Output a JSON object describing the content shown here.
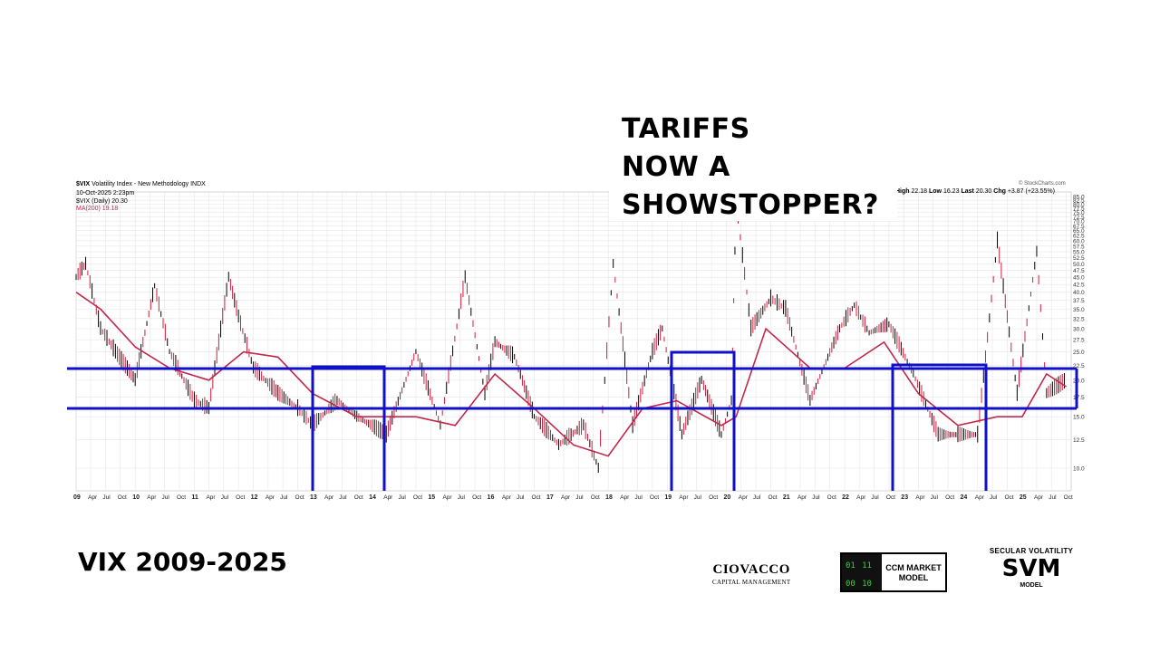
{
  "headline": [
    "TARIFFS",
    "NOW A",
    "SHOWSTOPPER?"
  ],
  "header": {
    "symbol": "$VIX",
    "name": "Volatility Index - New Methodology INDX",
    "date": "10-Oct-2025 2:23pm",
    "legend_vix": "$VIX (Daily) 20.30",
    "legend_ma": "MA(200) 19.18",
    "source": "© StockCharts.com",
    "stats": {
      "high_label": "High",
      "high": "22.18",
      "low_label": "Low",
      "low": "16.23",
      "last_label": "Last",
      "last": "20.30",
      "chg_label": "Chg",
      "chg": "+3.87 (+23.55%)"
    }
  },
  "bottom": {
    "title": "VIX 2009-2025",
    "ciovacco_name": "CIOVACCO",
    "ciovacco_sub": "CAPITAL MANAGEMENT",
    "ccm_label_1": "CCM MARKET",
    "ccm_label_2": "MODEL",
    "ccm_bits": [
      "01",
      "11",
      "00",
      "10"
    ],
    "svm_top": "SECULAR VOLATILITY",
    "svm_big": "SVM",
    "svm_bottom": "MODEL"
  },
  "colors": {
    "price": "#000000",
    "price_color": "#cc1f3c",
    "ma": "#c2284b",
    "overlay": "#1010c8",
    "grid": "#e6e6e6"
  },
  "chart_data": {
    "type": "line",
    "x_range": [
      "2009-01-01",
      "2025-10-31"
    ],
    "y_range": [
      7.5,
      90
    ],
    "y_scale": "log",
    "y_ticks": [
      "10.0",
      "12.5",
      "15.0",
      "17.5",
      "20.0",
      "22.5",
      "25.0",
      "27.5",
      "30.0",
      "32.5",
      "35.0",
      "37.5",
      "40.0",
      "42.5",
      "45.0",
      "47.5",
      "50.0",
      "52.5",
      "55.0",
      "57.5",
      "60.0",
      "62.5",
      "65.0",
      "67.5",
      "70.0",
      "72.5",
      "75.0",
      "77.5",
      "80.0",
      "82.5",
      "85.0"
    ],
    "x_ticks": [
      "09",
      "Apr",
      "Jul",
      "Oct",
      "10",
      "Apr",
      "Jul",
      "Oct",
      "11",
      "Apr",
      "Jul",
      "Oct",
      "12",
      "Apr",
      "Jul",
      "Oct",
      "13",
      "Apr",
      "Jul",
      "Oct",
      "14",
      "Apr",
      "Jul",
      "Oct",
      "15",
      "Apr",
      "Jul",
      "Oct",
      "16",
      "Apr",
      "Jul",
      "Oct",
      "17",
      "Apr",
      "Jul",
      "Oct",
      "18",
      "Apr",
      "Jul",
      "Oct",
      "19",
      "Apr",
      "Jul",
      "Oct",
      "20",
      "Apr",
      "Jul",
      "Oct",
      "21",
      "Apr",
      "Jul",
      "Oct",
      "22",
      "Apr",
      "Jul",
      "Oct",
      "23",
      "Apr",
      "Jul",
      "Oct",
      "24",
      "Apr",
      "Jul",
      "Oct",
      "25",
      "Apr",
      "Jul",
      "Oct"
    ],
    "series": [
      {
        "name": "$VIX (Daily)",
        "x": [
          "2009-01",
          "2009-03",
          "2009-06",
          "2009-09",
          "2010-01",
          "2010-05",
          "2010-08",
          "2011-01",
          "2011-04",
          "2011-08",
          "2011-10",
          "2012-01",
          "2012-06",
          "2012-10",
          "2013-01",
          "2013-06",
          "2013-10",
          "2014-04",
          "2014-10",
          "2015-03",
          "2015-08",
          "2015-12",
          "2016-02",
          "2016-06",
          "2016-10",
          "2017-03",
          "2017-08",
          "2017-11",
          "2018-02",
          "2018-06",
          "2018-10",
          "2018-12",
          "2019-04",
          "2019-08",
          "2019-12",
          "2020-02",
          "2020-03",
          "2020-06",
          "2020-10",
          "2021-01",
          "2021-06",
          "2021-12",
          "2022-03",
          "2022-06",
          "2022-10",
          "2023-03",
          "2023-08",
          "2023-12",
          "2024-04",
          "2024-08",
          "2024-12",
          "2025-04",
          "2025-06",
          "2025-10"
        ],
        "y": [
          45,
          50,
          30,
          25,
          20,
          42,
          25,
          17,
          16,
          45,
          33,
          22,
          18,
          16,
          14,
          17,
          15,
          13,
          25,
          14,
          45,
          18,
          27,
          24,
          15,
          12,
          14,
          10,
          50,
          14,
          25,
          30,
          13,
          20,
          13,
          17,
          82,
          30,
          38,
          35,
          17,
          30,
          36,
          29,
          31,
          21,
          13,
          13,
          13,
          60,
          18,
          55,
          18,
          20
        ]
      },
      {
        "name": "MA(200)",
        "x": [
          "2009-01",
          "2009-06",
          "2010-01",
          "2010-08",
          "2011-04",
          "2011-11",
          "2012-06",
          "2013-01",
          "2013-10",
          "2014-10",
          "2015-06",
          "2016-02",
          "2016-10",
          "2017-06",
          "2018-01",
          "2018-08",
          "2019-03",
          "2019-12",
          "2020-03",
          "2020-09",
          "2021-06",
          "2022-01",
          "2022-09",
          "2023-04",
          "2023-12",
          "2024-08",
          "2025-01",
          "2025-06",
          "2025-10"
        ],
        "y": [
          40,
          35,
          26,
          22,
          20,
          25,
          24,
          18,
          15,
          15,
          14,
          21,
          16,
          12,
          11,
          16,
          17,
          14,
          15,
          30,
          22,
          22,
          27,
          18,
          14,
          15,
          15,
          21,
          19
        ]
      }
    ],
    "annotations": [
      "TARIFFS NOW A SHOWSTOPPER?"
    ]
  }
}
